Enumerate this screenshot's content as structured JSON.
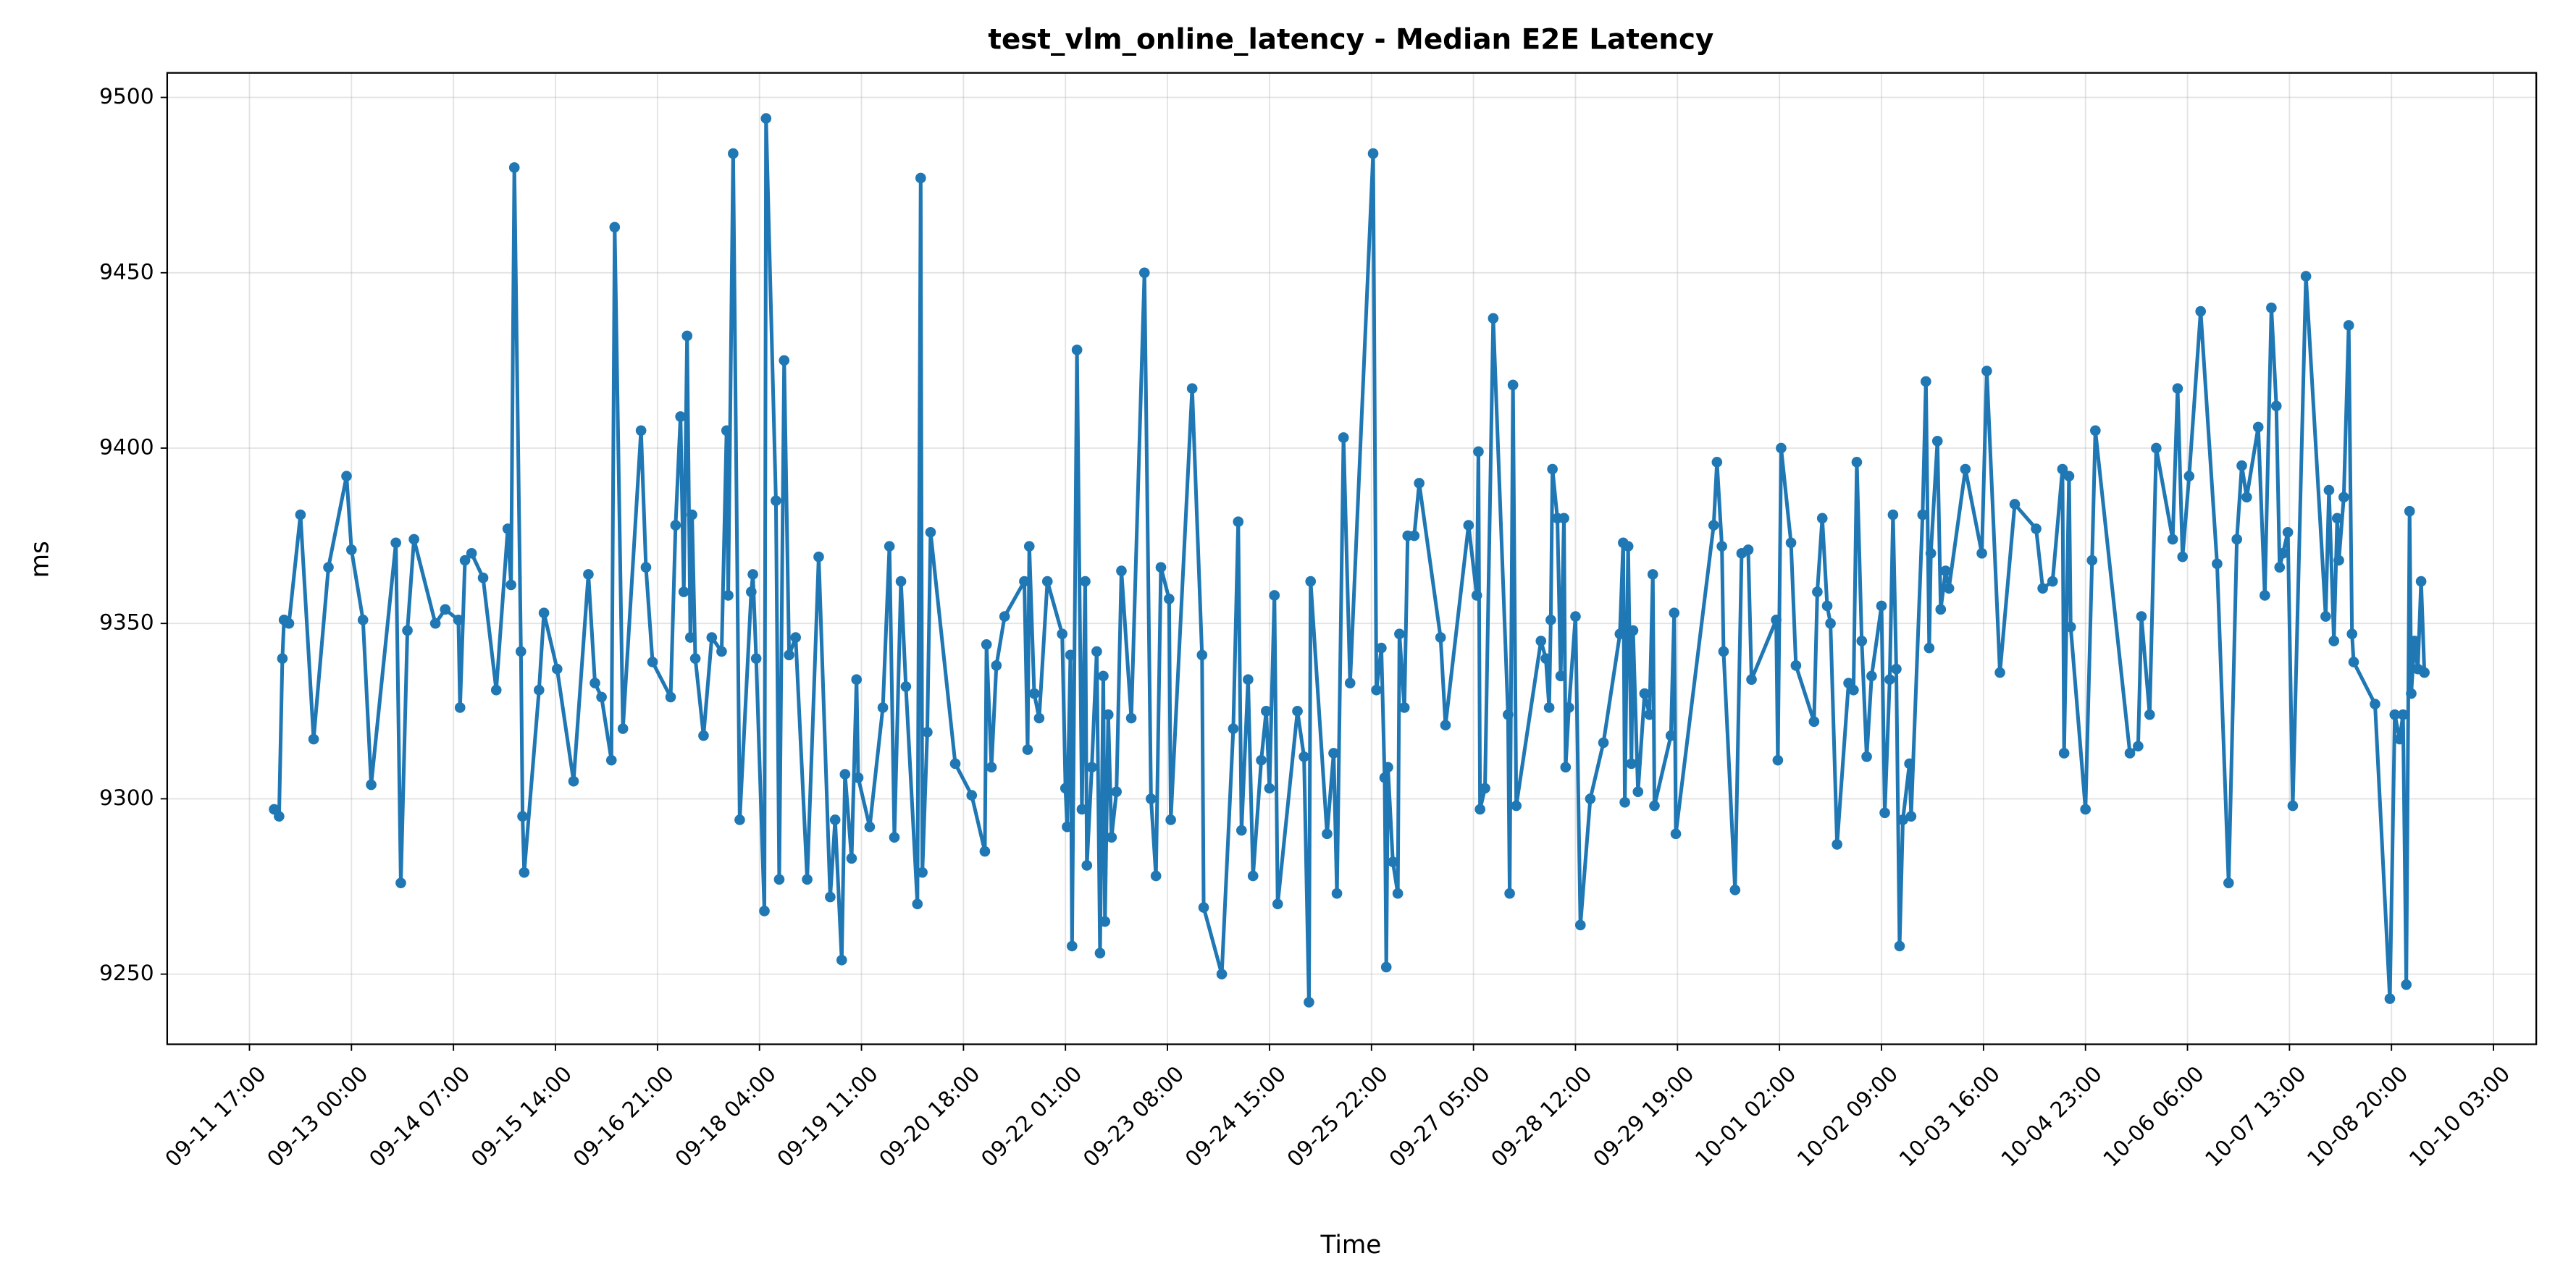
{
  "chart_data": {
    "type": "line",
    "title": "test_vlm_online_latency - Median E2E Latency",
    "x_label": "Time",
    "y_label": "ms",
    "color": "#1f77b4",
    "grid": true,
    "xlim": [
      "09-10 16:00",
      "10-10 16:00"
    ],
    "xticks": [
      "09-11 17:00",
      "09-13 00:00",
      "09-14 07:00",
      "09-15 14:00",
      "09-16 21:00",
      "09-18 04:00",
      "09-19 11:00",
      "09-20 18:00",
      "09-22 01:00",
      "09-23 08:00",
      "09-24 15:00",
      "09-25 22:00",
      "09-27 05:00",
      "09-28 12:00",
      "09-29 19:00",
      "10-01 02:00",
      "10-02 09:00",
      "10-03 16:00",
      "10-04 23:00",
      "10-06 06:00",
      "10-07 13:00",
      "10-08 20:00",
      "10-10 03:00"
    ],
    "ylim": [
      9230,
      9507
    ],
    "yticks": [
      9250,
      9300,
      9350,
      9400,
      9450,
      9500
    ],
    "x": [
      "09-12 00:30",
      "09-12 02:00",
      "09-12 03:00",
      "09-12 03:30",
      "09-12 05:00",
      "09-12 08:30",
      "09-12 12:30",
      "09-12 17:00",
      "09-12 22:30",
      "09-13 00:00",
      "09-13 03:30",
      "09-13 06:00",
      "09-13 13:30",
      "09-13 15:00",
      "09-13 17:00",
      "09-13 19:00",
      "09-14 01:30",
      "09-14 04:30",
      "09-14 08:30",
      "09-14 09:00",
      "09-14 10:30",
      "09-14 12:30",
      "09-14 16:00",
      "09-14 20:00",
      "09-14 23:30",
      "09-15 00:30",
      "09-15 01:30",
      "09-15 03:30",
      "09-15 04:00",
      "09-15 04:30",
      "09-15 09:00",
      "09-15 10:30",
      "09-15 14:30",
      "09-15 19:30",
      "09-16 00:00",
      "09-16 02:00",
      "09-16 04:00",
      "09-16 07:00",
      "09-16 08:00",
      "09-16 10:30",
      "09-16 16:00",
      "09-16 17:30",
      "09-16 19:30",
      "09-17 01:00",
      "09-17 02:30",
      "09-17 04:00",
      "09-17 05:00",
      "09-17 06:00",
      "09-17 07:00",
      "09-17 07:30",
      "09-17 08:30",
      "09-17 11:00",
      "09-17 13:30",
      "09-17 16:30",
      "09-17 18:00",
      "09-17 18:30",
      "09-17 20:00",
      "09-17 22:00",
      "09-18 01:30",
      "09-18 02:00",
      "09-18 03:00",
      "09-18 05:30",
      "09-18 06:00",
      "09-18 09:00",
      "09-18 10:00",
      "09-18 11:30",
      "09-18 13:00",
      "09-18 15:00",
      "09-18 18:30",
      "09-18 22:00",
      "09-19 01:30",
      "09-19 03:00",
      "09-19 05:00",
      "09-19 06:00",
      "09-19 08:00",
      "09-19 09:30",
      "09-19 10:00",
      "09-19 13:30",
      "09-19 17:30",
      "09-19 19:30",
      "09-19 21:00",
      "09-19 23:00",
      "09-20 00:30",
      "09-20 04:00",
      "09-20 05:00",
      "09-20 05:30",
      "09-20 07:00",
      "09-20 08:00",
      "09-20 15:30",
      "09-20 20:30",
      "09-21 00:30",
      "09-21 01:00",
      "09-21 02:30",
      "09-21 04:00",
      "09-21 06:30",
      "09-21 12:30",
      "09-21 13:30",
      "09-21 14:00",
      "09-21 15:30",
      "09-21 17:00",
      "09-21 19:30",
      "09-22 00:00",
      "09-22 01:00",
      "09-22 01:30",
      "09-22 02:30",
      "09-22 03:00",
      "09-22 04:30",
      "09-22 06:00",
      "09-22 07:00",
      "09-22 07:30",
      "09-22 09:00",
      "09-22 10:30",
      "09-22 11:30",
      "09-22 12:30",
      "09-22 13:00",
      "09-22 14:00",
      "09-22 15:00",
      "09-22 16:30",
      "09-22 18:00",
      "09-22 21:00",
      "09-23 01:00",
      "09-23 03:00",
      "09-23 04:30",
      "09-23 06:00",
      "09-23 08:30",
      "09-23 09:00",
      "09-23 15:30",
      "09-23 18:30",
      "09-23 19:00",
      "09-24 00:30",
      "09-24 04:00",
      "09-24 05:30",
      "09-24 06:30",
      "09-24 08:30",
      "09-24 10:00",
      "09-24 12:30",
      "09-24 14:00",
      "09-24 15:00",
      "09-24 16:30",
      "09-24 17:30",
      "09-24 23:30",
      "09-25 01:30",
      "09-25 03:00",
      "09-25 03:30",
      "09-25 08:30",
      "09-25 10:30",
      "09-25 11:30",
      "09-25 13:30",
      "09-25 15:30",
      "09-25 22:30",
      "09-25 23:30",
      "09-26 01:00",
      "09-26 02:00",
      "09-26 02:30",
      "09-26 03:00",
      "09-26 04:30",
      "09-26 06:00",
      "09-26 06:30",
      "09-26 08:00",
      "09-26 09:00",
      "09-26 11:00",
      "09-26 12:30",
      "09-26 19:00",
      "09-26 20:30",
      "09-27 03:30",
      "09-27 06:00",
      "09-27 06:30",
      "09-27 07:00",
      "09-27 08:30",
      "09-27 11:00",
      "09-27 15:30",
      "09-27 16:00",
      "09-27 17:00",
      "09-27 18:00",
      "09-28 01:30",
      "09-28 03:00",
      "09-28 04:00",
      "09-28 04:30",
      "09-28 05:00",
      "09-28 06:30",
      "09-28 07:30",
      "09-28 08:30",
      "09-28 09:00",
      "09-28 10:00",
      "09-28 12:00",
      "09-28 13:30",
      "09-28 16:30",
      "09-28 20:30",
      "09-29 01:30",
      "09-29 02:30",
      "09-29 03:00",
      "09-29 04:00",
      "09-29 05:00",
      "09-29 05:30",
      "09-29 07:00",
      "09-29 09:00",
      "09-29 10:30",
      "09-29 11:30",
      "09-29 12:00",
      "09-29 17:00",
      "09-29 18:00",
      "09-29 18:30",
      "09-30 06:00",
      "09-30 07:00",
      "09-30 08:30",
      "09-30 09:00",
      "09-30 12:30",
      "09-30 14:30",
      "09-30 16:30",
      "09-30 17:30",
      "10-01 01:00",
      "10-01 01:30",
      "10-01 02:30",
      "10-01 05:30",
      "10-01 07:00",
      "10-01 12:30",
      "10-01 13:30",
      "10-01 15:00",
      "10-01 16:30",
      "10-01 17:30",
      "10-01 19:30",
      "10-01 23:00",
      "10-02 00:30",
      "10-02 01:30",
      "10-02 03:00",
      "10-02 04:30",
      "10-02 06:00",
      "10-02 09:00",
      "10-02 10:00",
      "10-02 11:30",
      "10-02 12:30",
      "10-02 13:30",
      "10-02 14:30",
      "10-02 15:30",
      "10-02 17:30",
      "10-02 18:00",
      "10-02 21:30",
      "10-02 22:30",
      "10-02 23:30",
      "10-03 00:00",
      "10-03 02:00",
      "10-03 03:00",
      "10-03 04:30",
      "10-03 05:30",
      "10-03 10:30",
      "10-03 15:30",
      "10-03 17:00",
      "10-03 21:00",
      "10-04 01:30",
      "10-04 08:00",
      "10-04 10:00",
      "10-04 13:00",
      "10-04 16:00",
      "10-04 16:30",
      "10-04 18:00",
      "10-04 18:30",
      "10-04 23:00",
      "10-05 01:00",
      "10-05 02:00",
      "10-05 12:30",
      "10-05 15:00",
      "10-05 16:00",
      "10-05 18:30",
      "10-05 20:30",
      "10-06 01:30",
      "10-06 03:00",
      "10-06 04:30",
      "10-06 06:30",
      "10-06 10:00",
      "10-06 15:00",
      "10-06 18:30",
      "10-06 21:00",
      "10-06 22:30",
      "10-07 00:00",
      "10-07 03:30",
      "10-07 05:30",
      "10-07 07:30",
      "10-07 09:00",
      "10-07 10:00",
      "10-07 11:00",
      "10-07 12:30",
      "10-07 14:00",
      "10-07 18:00",
      "10-08 00:00",
      "10-08 01:00",
      "10-08 02:30",
      "10-08 03:30",
      "10-08 04:00",
      "10-08 05:30",
      "10-08 07:00",
      "10-08 08:00",
      "10-08 08:30",
      "10-08 15:00",
      "10-08 19:30",
      "10-08 21:00",
      "10-08 22:30",
      "10-08 23:30",
      "10-09 00:30",
      "10-09 01:30",
      "10-09 02:00",
      "10-09 03:00",
      "10-09 04:00",
      "10-09 05:00",
      "10-09 06:00"
    ],
    "values": [
      9297,
      9295,
      9340,
      9351,
      9350,
      9381,
      9317,
      9366,
      9392,
      9371,
      9351,
      9304,
      9373,
      9276,
      9348,
      9374,
      9350,
      9354,
      9351,
      9326,
      9368,
      9370,
      9363,
      9331,
      9377,
      9361,
      9480,
      9342,
      9295,
      9279,
      9331,
      9353,
      9337,
      9305,
      9364,
      9333,
      9329,
      9311,
      9463,
      9320,
      9405,
      9366,
      9339,
      9329,
      9378,
      9409,
      9359,
      9432,
      9346,
      9381,
      9340,
      9318,
      9346,
      9342,
      9405,
      9358,
      9484,
      9294,
      9359,
      9364,
      9340,
      9268,
      9494,
      9385,
      9277,
      9425,
      9341,
      9346,
      9277,
      9369,
      9272,
      9294,
      9254,
      9307,
      9283,
      9334,
      9306,
      9292,
      9326,
      9372,
      9289,
      9362,
      9332,
      9270,
      9477,
      9279,
      9319,
      9376,
      9310,
      9301,
      9285,
      9344,
      9309,
      9338,
      9352,
      9362,
      9314,
      9372,
      9330,
      9323,
      9362,
      9347,
      9303,
      9292,
      9341,
      9258,
      9428,
      9297,
      9362,
      9281,
      9309,
      9342,
      9256,
      9335,
      9265,
      9324,
      9289,
      9302,
      9365,
      9323,
      9450,
      9300,
      9278,
      9366,
      9357,
      9294,
      9417,
      9341,
      9269,
      9250,
      9320,
      9379,
      9291,
      9334,
      9278,
      9311,
      9325,
      9303,
      9358,
      9270,
      9325,
      9312,
      9242,
      9362,
      9290,
      9313,
      9273,
      9403,
      9333,
      9484,
      9331,
      9343,
      9306,
      9252,
      9309,
      9282,
      9273,
      9347,
      9326,
      9375,
      9375,
      9390,
      9346,
      9321,
      9378,
      9358,
      9399,
      9297,
      9303,
      9437,
      9324,
      9273,
      9418,
      9298,
      9345,
      9340,
      9326,
      9351,
      9394,
      9380,
      9335,
      9380,
      9309,
      9326,
      9352,
      9264,
      9300,
      9316,
      9347,
      9373,
      9299,
      9372,
      9310,
      9348,
      9302,
      9330,
      9324,
      9364,
      9298,
      9318,
      9353,
      9290,
      9378,
      9396,
      9372,
      9342,
      9274,
      9370,
      9371,
      9334,
      9351,
      9311,
      9400,
      9373,
      9338,
      9322,
      9359,
      9380,
      9355,
      9350,
      9287,
      9333,
      9331,
      9396,
      9345,
      9312,
      9335,
      9355,
      9296,
      9334,
      9381,
      9337,
      9258,
      9294,
      9310,
      9295,
      9381,
      9419,
      9343,
      9370,
      9402,
      9354,
      9365,
      9360,
      9394,
      9370,
      9422,
      9336,
      9384,
      9377,
      9360,
      9362,
      9394,
      9313,
      9392,
      9349,
      9297,
      9368,
      9405,
      9313,
      9315,
      9352,
      9324,
      9400,
      9374,
      9417,
      9369,
      9392,
      9439,
      9367,
      9276,
      9374,
      9395,
      9386,
      9406,
      9358,
      9440,
      9412,
      9366,
      9370,
      9376,
      9298,
      9449,
      9352,
      9388,
      9345,
      9380,
      9368,
      9386,
      9435,
      9347,
      9339,
      9327,
      9243,
      9324,
      9317,
      9324,
      9247,
      9382,
      9330,
      9345,
      9337,
      9362,
      9336
    ]
  }
}
